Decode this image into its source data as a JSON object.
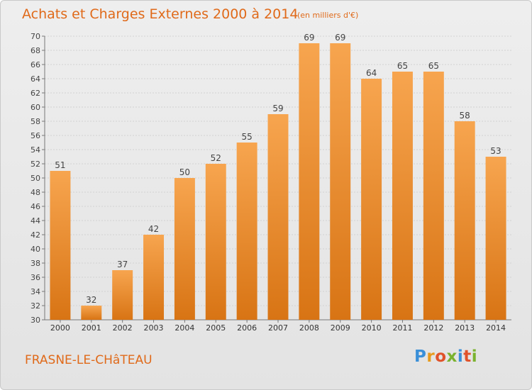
{
  "title": "Achats et Charges Externes 2000 à 2014",
  "subtitle": "(en milliers d'€)",
  "place": "FRASNE-LE-CHâTEAU",
  "logo": {
    "letters": [
      "P",
      "r",
      "o",
      "x",
      "i",
      "t",
      "i"
    ],
    "colors": [
      "#3a8fd8",
      "#e89a1c",
      "#e0522a",
      "#7ab22e",
      "#3a8fd8",
      "#e0522a",
      "#7ab22e"
    ]
  },
  "colors": {
    "bar_top": "#f7a54f",
    "bar_bottom": "#d87414",
    "accent": "#e06a1a"
  },
  "chart_data": {
    "type": "bar",
    "categories": [
      "2000",
      "2001",
      "2002",
      "2003",
      "2004",
      "2005",
      "2006",
      "2007",
      "2008",
      "2009",
      "2010",
      "2011",
      "2012",
      "2013",
      "2014"
    ],
    "values": [
      51,
      32,
      37,
      42,
      50,
      52,
      55,
      59,
      69,
      69,
      64,
      65,
      65,
      58,
      53
    ],
    "ylim": [
      30,
      70
    ],
    "yticks": [
      30,
      32,
      34,
      36,
      38,
      40,
      42,
      44,
      46,
      48,
      50,
      52,
      54,
      56,
      58,
      60,
      62,
      64,
      66,
      68,
      70
    ],
    "grid": true,
    "data_labels": true
  }
}
